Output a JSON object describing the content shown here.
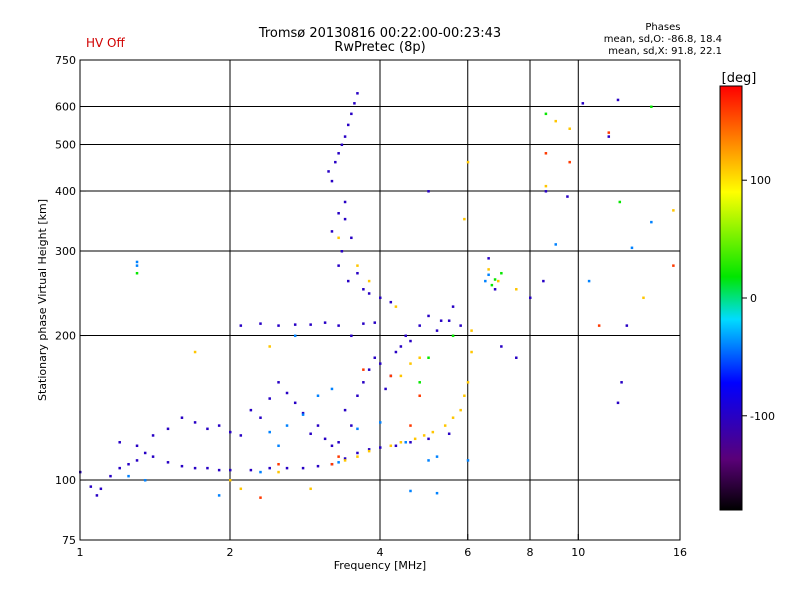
{
  "chart_data": {
    "type": "scatter",
    "title": "Tromsø 20130816 00:22:00-00:23:43",
    "subtitle": "RwPretec (8p)",
    "status_label": "HV Off",
    "phases": {
      "heading": "Phases",
      "line_o": "mean, sd,O: -86.8, 18.4",
      "line_x": "mean, sd,X:  91.8, 22.1"
    },
    "xlabel": "Frequency [MHz]",
    "ylabel": "Stationary phase Virtual Height [km]",
    "x_scale": "log",
    "y_scale": "log",
    "xlim": [
      1,
      16
    ],
    "ylim": [
      75,
      750
    ],
    "x_ticks": [
      1,
      2,
      4,
      6,
      8,
      10,
      16
    ],
    "y_ticks": [
      75,
      100,
      200,
      300,
      400,
      500,
      600,
      750
    ],
    "grid": true,
    "colorbar": {
      "label": "[deg]",
      "range": [
        -180,
        180
      ],
      "ticks": [
        100,
        0,
        -100
      ]
    },
    "series": [
      {
        "name": "",
        "color_value": -100,
        "points": [
          [
            1.0,
            104
          ],
          [
            1.05,
            97
          ],
          [
            1.08,
            93
          ],
          [
            1.1,
            96
          ],
          [
            1.15,
            102
          ],
          [
            1.2,
            106
          ],
          [
            1.25,
            108
          ],
          [
            1.3,
            110
          ],
          [
            1.35,
            114
          ],
          [
            1.4,
            112
          ],
          [
            1.5,
            109
          ],
          [
            1.6,
            107
          ],
          [
            1.7,
            106
          ],
          [
            1.8,
            106
          ],
          [
            1.9,
            105
          ],
          [
            2.0,
            105
          ],
          [
            2.2,
            105
          ],
          [
            2.4,
            106
          ],
          [
            2.6,
            106
          ],
          [
            2.8,
            106
          ],
          [
            3.0,
            107
          ],
          [
            3.2,
            108
          ],
          [
            3.4,
            111
          ],
          [
            3.6,
            114
          ],
          [
            3.8,
            116
          ],
          [
            4.0,
            117
          ],
          [
            4.3,
            118
          ],
          [
            4.6,
            120
          ],
          [
            5.0,
            122
          ],
          [
            5.5,
            125
          ],
          [
            1.2,
            120
          ],
          [
            1.3,
            118
          ],
          [
            1.4,
            124
          ],
          [
            1.5,
            128
          ],
          [
            1.6,
            135
          ],
          [
            1.7,
            132
          ],
          [
            1.8,
            128
          ],
          [
            1.9,
            130
          ],
          [
            2.0,
            126
          ],
          [
            2.1,
            124
          ],
          [
            2.2,
            140
          ],
          [
            2.3,
            135
          ],
          [
            2.4,
            148
          ],
          [
            2.5,
            160
          ],
          [
            2.6,
            152
          ],
          [
            2.7,
            145
          ],
          [
            2.8,
            138
          ],
          [
            2.9,
            125
          ],
          [
            3.0,
            130
          ],
          [
            3.1,
            122
          ],
          [
            3.2,
            118
          ],
          [
            3.3,
            120
          ],
          [
            3.4,
            140
          ],
          [
            3.5,
            130
          ],
          [
            3.6,
            150
          ],
          [
            3.7,
            160
          ],
          [
            3.8,
            170
          ],
          [
            3.9,
            180
          ],
          [
            4.0,
            175
          ],
          [
            4.1,
            155
          ],
          [
            4.2,
            165
          ],
          [
            4.3,
            185
          ],
          [
            4.4,
            190
          ],
          [
            4.5,
            200
          ],
          [
            4.6,
            195
          ],
          [
            4.8,
            210
          ],
          [
            5.0,
            220
          ],
          [
            5.2,
            205
          ],
          [
            5.5,
            215
          ],
          [
            5.8,
            210
          ],
          [
            2.1,
            210
          ],
          [
            2.3,
            212
          ],
          [
            2.5,
            210
          ],
          [
            2.7,
            211
          ],
          [
            2.9,
            211
          ],
          [
            3.1,
            213
          ],
          [
            3.3,
            210
          ],
          [
            3.5,
            200
          ],
          [
            3.7,
            212
          ],
          [
            3.9,
            213
          ],
          [
            3.15,
            440
          ],
          [
            3.2,
            420
          ],
          [
            3.25,
            460
          ],
          [
            3.3,
            480
          ],
          [
            3.35,
            500
          ],
          [
            3.4,
            520
          ],
          [
            3.45,
            550
          ],
          [
            3.5,
            580
          ],
          [
            3.55,
            610
          ],
          [
            3.6,
            640
          ],
          [
            3.3,
            280
          ],
          [
            3.35,
            300
          ],
          [
            3.4,
            350
          ],
          [
            3.45,
            260
          ],
          [
            3.5,
            320
          ],
          [
            3.6,
            270
          ],
          [
            3.7,
            250
          ],
          [
            3.8,
            245
          ],
          [
            4.0,
            240
          ],
          [
            4.2,
            235
          ],
          [
            5.3,
            215
          ],
          [
            5.6,
            230
          ],
          [
            6.6,
            290
          ],
          [
            6.8,
            250
          ],
          [
            7.0,
            190
          ],
          [
            7.5,
            180
          ],
          [
            8.5,
            260
          ],
          [
            8.6,
            400
          ],
          [
            9.5,
            390
          ],
          [
            10.2,
            610
          ],
          [
            11.5,
            520
          ],
          [
            12.0,
            620
          ],
          [
            12.5,
            210
          ],
          [
            12.0,
            145
          ],
          [
            12.2,
            160
          ],
          [
            8.0,
            240
          ],
          [
            3.2,
            330
          ],
          [
            3.3,
            360
          ],
          [
            3.4,
            380
          ],
          [
            5.0,
            400
          ]
        ]
      },
      {
        "name": "",
        "color_value": -40,
        "points": [
          [
            1.25,
            102
          ],
          [
            1.35,
            100
          ],
          [
            2.4,
            126
          ],
          [
            2.6,
            130
          ],
          [
            2.8,
            137
          ],
          [
            3.0,
            150
          ],
          [
            3.2,
            155
          ],
          [
            3.6,
            128
          ],
          [
            4.0,
            132
          ],
          [
            4.5,
            120
          ],
          [
            5.0,
            110
          ],
          [
            5.2,
            112
          ],
          [
            1.3,
            280
          ],
          [
            1.3,
            285
          ],
          [
            6.5,
            260
          ],
          [
            6.6,
            268
          ],
          [
            10.5,
            260
          ],
          [
            12.8,
            305
          ],
          [
            14.0,
            345
          ],
          [
            9.0,
            310
          ],
          [
            4.6,
            95
          ],
          [
            5.2,
            94
          ],
          [
            6.0,
            110
          ],
          [
            2.5,
            118
          ],
          [
            3.3,
            109
          ],
          [
            1.9,
            93
          ],
          [
            2.3,
            104
          ],
          [
            2.7,
            200
          ]
        ]
      },
      {
        "name": "",
        "color_value": 20,
        "points": [
          [
            1.3,
            270
          ],
          [
            6.7,
            255
          ],
          [
            6.8,
            262
          ],
          [
            8.6,
            580
          ],
          [
            14.0,
            600
          ],
          [
            12.1,
            380
          ],
          [
            7.0,
            270
          ],
          [
            5.0,
            180
          ],
          [
            4.8,
            160
          ],
          [
            5.6,
            200
          ]
        ]
      },
      {
        "name": "",
        "color_value": 110,
        "points": [
          [
            3.4,
            110
          ],
          [
            3.6,
            112
          ],
          [
            3.8,
            115
          ],
          [
            4.2,
            118
          ],
          [
            4.4,
            120
          ],
          [
            4.7,
            122
          ],
          [
            4.9,
            124
          ],
          [
            5.1,
            126
          ],
          [
            5.4,
            130
          ],
          [
            5.6,
            135
          ],
          [
            5.8,
            140
          ],
          [
            5.9,
            150
          ],
          [
            6.0,
            160
          ],
          [
            6.1,
            185
          ],
          [
            6.1,
            205
          ],
          [
            5.9,
            350
          ],
          [
            6.0,
            460
          ],
          [
            4.8,
            180
          ],
          [
            4.6,
            175
          ],
          [
            4.4,
            165
          ],
          [
            2.1,
            96
          ],
          [
            2.0,
            100
          ],
          [
            2.5,
            104
          ],
          [
            2.9,
            96
          ],
          [
            3.3,
            320
          ],
          [
            3.6,
            280
          ],
          [
            3.8,
            260
          ],
          [
            4.3,
            230
          ],
          [
            6.6,
            275
          ],
          [
            6.9,
            260
          ],
          [
            7.5,
            250
          ],
          [
            8.6,
            410
          ],
          [
            9.0,
            560
          ],
          [
            9.6,
            540
          ],
          [
            1.7,
            185
          ],
          [
            2.4,
            190
          ],
          [
            15.5,
            365
          ],
          [
            13.5,
            240
          ]
        ]
      },
      {
        "name": "",
        "color_value": 160,
        "points": [
          [
            3.3,
            112
          ],
          [
            3.7,
            170
          ],
          [
            4.2,
            165
          ],
          [
            4.8,
            150
          ],
          [
            11.5,
            530
          ],
          [
            9.6,
            460
          ],
          [
            8.6,
            480
          ],
          [
            11.0,
            210
          ],
          [
            15.5,
            280
          ],
          [
            3.2,
            108
          ],
          [
            2.5,
            108
          ],
          [
            4.6,
            130
          ],
          [
            2.3,
            92
          ]
        ]
      }
    ]
  }
}
